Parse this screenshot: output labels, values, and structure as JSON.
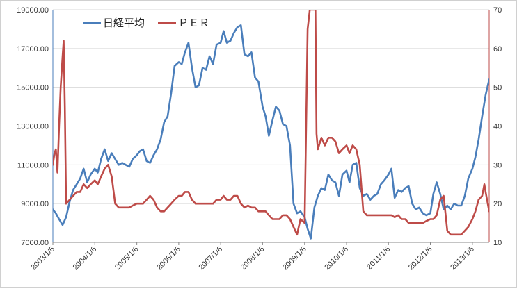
{
  "chart_data": {
    "type": "line",
    "title": "",
    "xlabel": "",
    "ylabel": "",
    "x_range": [
      "2003-01-06",
      "2013-06-01"
    ],
    "x_tick_labels": [
      "2003/1/6",
      "2004/1/6",
      "2005/1/6",
      "2006/1/6",
      "2007/1/6",
      "2008/1/6",
      "2009/1/6",
      "2010/1/6",
      "2011/1/6",
      "2012/1/6",
      "2013/1/6"
    ],
    "y_left": {
      "range": [
        7000,
        19000
      ],
      "ticks": [
        "7000.00",
        "9000.00",
        "11000.00",
        "13000.00",
        "15000.00",
        "17000.00",
        "19000.00"
      ]
    },
    "y_right": {
      "range": [
        10,
        70
      ],
      "ticks": [
        "10",
        "20",
        "30",
        "40",
        "50",
        "60",
        "70"
      ]
    },
    "grid": "horizontal",
    "legend": "top-left",
    "series": [
      {
        "name": "日経平均",
        "axis": "left",
        "color": "#4a7ebb",
        "points": [
          [
            "2003-01-06",
            8700
          ],
          [
            "2003-02-01",
            8500
          ],
          [
            "2003-03-01",
            8200
          ],
          [
            "2003-04-01",
            7900
          ],
          [
            "2003-05-01",
            8300
          ],
          [
            "2003-06-01",
            9100
          ],
          [
            "2003-07-01",
            9700
          ],
          [
            "2003-08-01",
            10000
          ],
          [
            "2003-09-01",
            10300
          ],
          [
            "2003-10-01",
            10800
          ],
          [
            "2003-11-01",
            10100
          ],
          [
            "2003-12-01",
            10500
          ],
          [
            "2004-01-06",
            10800
          ],
          [
            "2004-02-01",
            10600
          ],
          [
            "2004-03-01",
            11300
          ],
          [
            "2004-04-01",
            11800
          ],
          [
            "2004-05-01",
            11200
          ],
          [
            "2004-06-01",
            11600
          ],
          [
            "2004-07-01",
            11300
          ],
          [
            "2004-08-01",
            11000
          ],
          [
            "2004-09-01",
            11100
          ],
          [
            "2004-10-01",
            11000
          ],
          [
            "2004-11-01",
            10900
          ],
          [
            "2004-12-01",
            11300
          ],
          [
            "2005-01-06",
            11500
          ],
          [
            "2005-02-01",
            11700
          ],
          [
            "2005-03-01",
            11800
          ],
          [
            "2005-04-01",
            11200
          ],
          [
            "2005-05-01",
            11100
          ],
          [
            "2005-06-01",
            11500
          ],
          [
            "2005-07-01",
            11800
          ],
          [
            "2005-08-01",
            12300
          ],
          [
            "2005-09-01",
            13200
          ],
          [
            "2005-10-01",
            13500
          ],
          [
            "2005-11-01",
            14700
          ],
          [
            "2005-12-01",
            16100
          ],
          [
            "2006-01-06",
            16300
          ],
          [
            "2006-02-01",
            16200
          ],
          [
            "2006-03-01",
            16800
          ],
          [
            "2006-04-01",
            17300
          ],
          [
            "2006-05-01",
            16000
          ],
          [
            "2006-06-01",
            15000
          ],
          [
            "2006-07-01",
            15100
          ],
          [
            "2006-08-01",
            16000
          ],
          [
            "2006-09-01",
            15900
          ],
          [
            "2006-10-01",
            16600
          ],
          [
            "2006-11-01",
            16200
          ],
          [
            "2006-12-01",
            17200
          ],
          [
            "2007-01-06",
            17300
          ],
          [
            "2007-02-01",
            17900
          ],
          [
            "2007-03-01",
            17300
          ],
          [
            "2007-04-01",
            17400
          ],
          [
            "2007-05-01",
            17800
          ],
          [
            "2007-06-01",
            18100
          ],
          [
            "2007-07-01",
            18200
          ],
          [
            "2007-08-01",
            16700
          ],
          [
            "2007-09-01",
            16600
          ],
          [
            "2007-10-01",
            16800
          ],
          [
            "2007-11-01",
            15500
          ],
          [
            "2007-12-01",
            15300
          ],
          [
            "2008-01-06",
            14000
          ],
          [
            "2008-02-01",
            13500
          ],
          [
            "2008-03-01",
            12500
          ],
          [
            "2008-04-01",
            13300
          ],
          [
            "2008-05-01",
            14000
          ],
          [
            "2008-06-01",
            13800
          ],
          [
            "2008-07-01",
            13100
          ],
          [
            "2008-08-01",
            13000
          ],
          [
            "2008-09-01",
            12000
          ],
          [
            "2008-10-01",
            9000
          ],
          [
            "2008-11-01",
            8500
          ],
          [
            "2008-12-01",
            8600
          ],
          [
            "2009-01-06",
            8300
          ],
          [
            "2009-02-01",
            7700
          ],
          [
            "2009-03-01",
            7200
          ],
          [
            "2009-04-01",
            8800
          ],
          [
            "2009-05-01",
            9400
          ],
          [
            "2009-06-01",
            9800
          ],
          [
            "2009-07-01",
            9700
          ],
          [
            "2009-08-01",
            10500
          ],
          [
            "2009-09-01",
            10200
          ],
          [
            "2009-10-01",
            10100
          ],
          [
            "2009-11-01",
            9400
          ],
          [
            "2009-12-01",
            10500
          ],
          [
            "2010-01-06",
            10700
          ],
          [
            "2010-02-01",
            10100
          ],
          [
            "2010-03-01",
            11000
          ],
          [
            "2010-04-01",
            11100
          ],
          [
            "2010-05-01",
            9800
          ],
          [
            "2010-06-01",
            9400
          ],
          [
            "2010-07-01",
            9500
          ],
          [
            "2010-08-01",
            9200
          ],
          [
            "2010-09-01",
            9400
          ],
          [
            "2010-10-01",
            9500
          ],
          [
            "2010-11-01",
            10000
          ],
          [
            "2010-12-01",
            10200
          ],
          [
            "2011-01-06",
            10500
          ],
          [
            "2011-02-01",
            10800
          ],
          [
            "2011-03-01",
            9300
          ],
          [
            "2011-04-01",
            9700
          ],
          [
            "2011-05-01",
            9600
          ],
          [
            "2011-06-01",
            9800
          ],
          [
            "2011-07-01",
            9900
          ],
          [
            "2011-08-01",
            9000
          ],
          [
            "2011-09-01",
            8700
          ],
          [
            "2011-10-01",
            8800
          ],
          [
            "2011-11-01",
            8500
          ],
          [
            "2011-12-01",
            8400
          ],
          [
            "2012-01-06",
            8500
          ],
          [
            "2012-02-01",
            9500
          ],
          [
            "2012-03-01",
            10100
          ],
          [
            "2012-04-01",
            9500
          ],
          [
            "2012-05-01",
            8700
          ],
          [
            "2012-06-01",
            8900
          ],
          [
            "2012-07-01",
            8700
          ],
          [
            "2012-08-01",
            9000
          ],
          [
            "2012-09-01",
            8900
          ],
          [
            "2012-10-01",
            8900
          ],
          [
            "2012-11-01",
            9400
          ],
          [
            "2012-12-01",
            10300
          ],
          [
            "2013-01-06",
            10800
          ],
          [
            "2013-02-01",
            11400
          ],
          [
            "2013-03-01",
            12300
          ],
          [
            "2013-04-01",
            13500
          ],
          [
            "2013-05-01",
            14600
          ],
          [
            "2013-06-01",
            15400
          ]
        ]
      },
      {
        "name": "ＰＥＲ",
        "axis": "right",
        "color": "#be4b48",
        "points": [
          [
            "2003-01-06",
            30
          ],
          [
            "2003-01-20",
            33
          ],
          [
            "2003-02-01",
            34
          ],
          [
            "2003-02-15",
            28
          ],
          [
            "2003-03-01",
            40
          ],
          [
            "2003-03-15",
            50
          ],
          [
            "2003-04-01",
            58
          ],
          [
            "2003-04-10",
            62
          ],
          [
            "2003-04-20",
            45
          ],
          [
            "2003-05-01",
            20
          ],
          [
            "2003-06-01",
            21
          ],
          [
            "2003-07-01",
            22
          ],
          [
            "2003-08-01",
            23
          ],
          [
            "2003-09-01",
            23
          ],
          [
            "2003-10-01",
            25
          ],
          [
            "2003-11-01",
            24
          ],
          [
            "2003-12-01",
            25
          ],
          [
            "2004-01-06",
            26
          ],
          [
            "2004-02-01",
            25
          ],
          [
            "2004-03-01",
            27
          ],
          [
            "2004-04-01",
            29
          ],
          [
            "2004-05-01",
            30
          ],
          [
            "2004-06-01",
            27
          ],
          [
            "2004-07-01",
            20
          ],
          [
            "2004-08-01",
            19
          ],
          [
            "2004-09-01",
            19
          ],
          [
            "2004-10-01",
            19
          ],
          [
            "2004-11-01",
            19
          ],
          [
            "2004-12-01",
            19.5
          ],
          [
            "2005-01-06",
            20
          ],
          [
            "2005-02-01",
            20
          ],
          [
            "2005-03-01",
            20
          ],
          [
            "2005-04-01",
            21
          ],
          [
            "2005-05-01",
            22
          ],
          [
            "2005-06-01",
            21
          ],
          [
            "2005-07-01",
            19
          ],
          [
            "2005-08-01",
            18
          ],
          [
            "2005-09-01",
            18
          ],
          [
            "2005-10-01",
            19
          ],
          [
            "2005-11-01",
            20
          ],
          [
            "2005-12-01",
            21
          ],
          [
            "2006-01-06",
            22
          ],
          [
            "2006-02-01",
            22
          ],
          [
            "2006-03-01",
            23
          ],
          [
            "2006-04-01",
            23
          ],
          [
            "2006-05-01",
            21
          ],
          [
            "2006-06-01",
            20
          ],
          [
            "2006-07-01",
            20
          ],
          [
            "2006-08-01",
            20
          ],
          [
            "2006-09-01",
            20
          ],
          [
            "2006-10-01",
            20
          ],
          [
            "2006-11-01",
            20
          ],
          [
            "2006-12-01",
            21
          ],
          [
            "2007-01-06",
            21
          ],
          [
            "2007-02-01",
            22
          ],
          [
            "2007-03-01",
            21
          ],
          [
            "2007-04-01",
            21
          ],
          [
            "2007-05-01",
            22
          ],
          [
            "2007-06-01",
            22
          ],
          [
            "2007-07-01",
            20
          ],
          [
            "2007-08-01",
            19
          ],
          [
            "2007-09-01",
            19.5
          ],
          [
            "2007-10-01",
            19
          ],
          [
            "2007-11-01",
            19
          ],
          [
            "2007-12-01",
            18
          ],
          [
            "2008-01-06",
            18
          ],
          [
            "2008-02-01",
            18
          ],
          [
            "2008-03-01",
            17
          ],
          [
            "2008-04-01",
            16
          ],
          [
            "2008-05-01",
            16
          ],
          [
            "2008-06-01",
            16
          ],
          [
            "2008-07-01",
            17
          ],
          [
            "2008-08-01",
            17
          ],
          [
            "2008-09-01",
            16
          ],
          [
            "2008-10-01",
            14
          ],
          [
            "2008-11-01",
            12
          ],
          [
            "2008-12-01",
            16
          ],
          [
            "2009-01-06",
            15
          ],
          [
            "2009-02-01",
            65
          ],
          [
            "2009-02-20",
            70
          ],
          [
            "2009-03-15",
            70
          ],
          [
            "2009-04-10",
            70
          ],
          [
            "2009-04-20",
            38
          ],
          [
            "2009-05-01",
            34
          ],
          [
            "2009-06-01",
            37
          ],
          [
            "2009-07-01",
            35
          ],
          [
            "2009-08-01",
            37
          ],
          [
            "2009-09-01",
            37
          ],
          [
            "2009-10-01",
            36
          ],
          [
            "2009-11-01",
            33
          ],
          [
            "2009-12-01",
            34
          ],
          [
            "2010-01-06",
            35
          ],
          [
            "2010-02-01",
            33
          ],
          [
            "2010-03-01",
            35
          ],
          [
            "2010-04-01",
            34
          ],
          [
            "2010-05-01",
            30
          ],
          [
            "2010-06-01",
            18
          ],
          [
            "2010-07-01",
            17
          ],
          [
            "2010-08-01",
            17
          ],
          [
            "2010-09-01",
            17
          ],
          [
            "2010-10-01",
            17
          ],
          [
            "2010-11-01",
            17
          ],
          [
            "2010-12-01",
            17
          ],
          [
            "2011-01-06",
            17
          ],
          [
            "2011-02-01",
            17
          ],
          [
            "2011-03-01",
            16.5
          ],
          [
            "2011-04-01",
            17
          ],
          [
            "2011-05-01",
            16
          ],
          [
            "2011-06-01",
            16
          ],
          [
            "2011-07-01",
            15
          ],
          [
            "2011-08-01",
            15
          ],
          [
            "2011-09-01",
            15
          ],
          [
            "2011-10-01",
            15
          ],
          [
            "2011-11-01",
            15
          ],
          [
            "2011-12-01",
            15.5
          ],
          [
            "2012-01-06",
            16
          ],
          [
            "2012-02-01",
            16
          ],
          [
            "2012-03-01",
            17
          ],
          [
            "2012-04-01",
            21
          ],
          [
            "2012-05-01",
            22
          ],
          [
            "2012-06-01",
            13
          ],
          [
            "2012-07-01",
            12
          ],
          [
            "2012-08-01",
            12
          ],
          [
            "2012-09-01",
            12
          ],
          [
            "2012-10-01",
            12
          ],
          [
            "2012-11-01",
            13
          ],
          [
            "2012-12-01",
            14
          ],
          [
            "2013-01-06",
            16
          ],
          [
            "2013-02-01",
            18
          ],
          [
            "2013-03-01",
            21
          ],
          [
            "2013-04-01",
            22
          ],
          [
            "2013-04-20",
            25
          ],
          [
            "2013-05-01",
            23
          ],
          [
            "2013-06-01",
            18
          ]
        ]
      }
    ]
  }
}
